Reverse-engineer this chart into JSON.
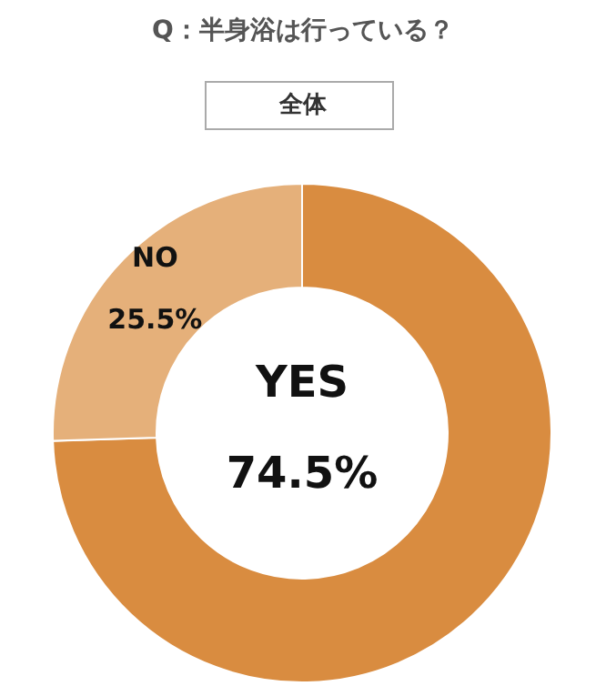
{
  "chart_data": {
    "type": "donut",
    "title": "Q：半身浴は行っている？",
    "subtitle": "全体",
    "categories": [
      "YES",
      "NO"
    ],
    "values": [
      74.5,
      25.5
    ],
    "colors": [
      "#d98c40",
      "#e5b07a"
    ],
    "value_labels": [
      "74.5%",
      "25.5%"
    ]
  }
}
